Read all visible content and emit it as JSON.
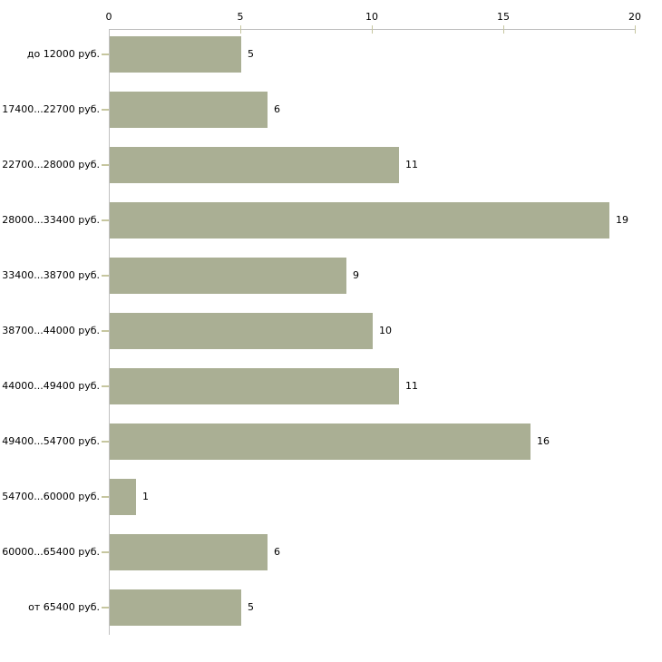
{
  "chart_data": {
    "type": "bar",
    "orientation": "horizontal",
    "title": "",
    "categories": [
      "до 12000 руб.",
      "17400...22700 руб.",
      "22700...28000 руб.",
      "28000...33400 руб.",
      "33400...38700 руб.",
      "38700...44000 руб.",
      "44000...49400 руб.",
      "49400...54700 руб.",
      "54700...60000 руб.",
      "60000...65400 руб.",
      "от 65400 руб."
    ],
    "values": [
      5,
      6,
      11,
      19,
      9,
      10,
      11,
      16,
      1,
      6,
      5
    ],
    "value_labels": [
      "5",
      "6",
      "11",
      "19",
      "9",
      "10",
      "11",
      "16",
      "1",
      "6",
      "5"
    ],
    "x_axis": {
      "position": "top",
      "tick_labels": [
        "0",
        "5",
        "10",
        "15",
        "20"
      ],
      "tick_values": [
        0,
        5,
        10,
        15,
        20
      ],
      "range": [
        0,
        20
      ]
    },
    "grid": "off",
    "legend": "none",
    "colors": {
      "bar_fill": "#aaaf94",
      "axis_line": "#c0c0c0",
      "tick_mark": "#c6c69f",
      "text": "#000000",
      "background": "#ffffff"
    }
  }
}
